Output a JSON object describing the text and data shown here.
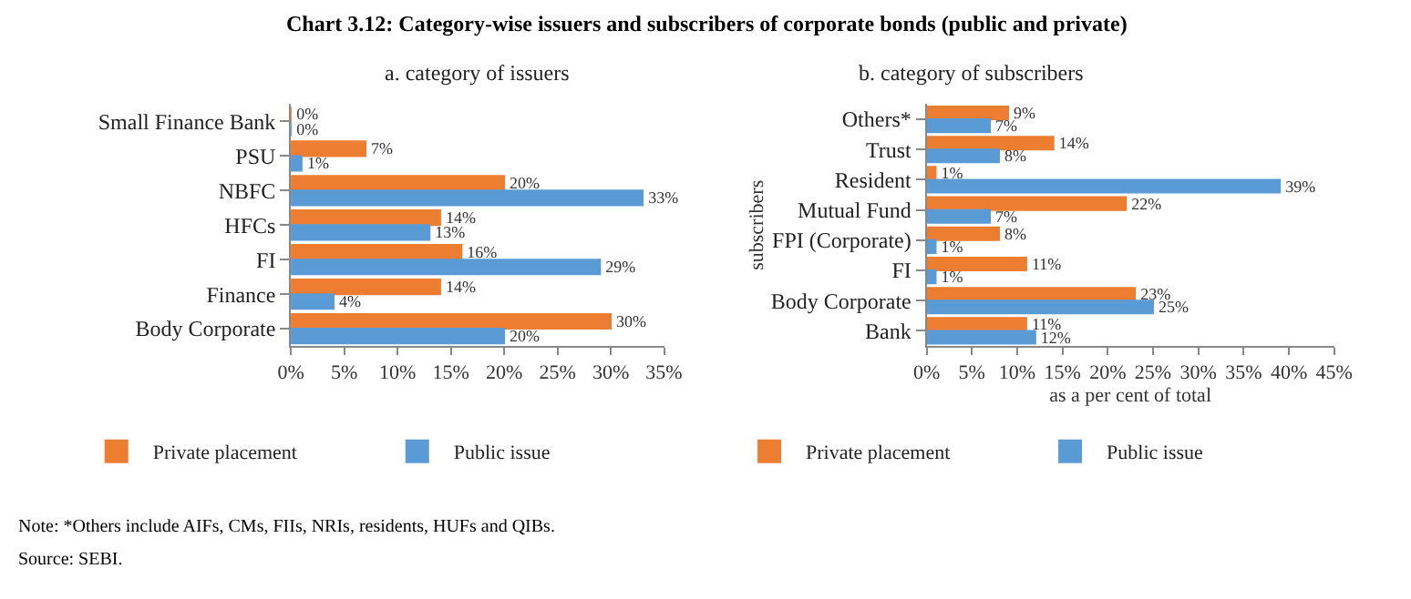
{
  "chart_data": [
    {
      "type": "bar",
      "orientation": "horizontal",
      "title": "Chart 3.12: Category-wise issuers and subscribers of corporate bonds (public and private)",
      "subtitle": "a. category of issuers",
      "categories": [
        "Small Finance Bank",
        "PSU",
        "NBFC",
        "HFCs",
        "FI",
        "Finance",
        "Body Corporate"
      ],
      "series": [
        {
          "name": "Private placement",
          "color": "#ed7d31",
          "values": [
            0,
            7,
            20,
            14,
            16,
            14,
            30
          ],
          "value_labels": [
            "0%",
            "7%",
            "20%",
            "14%",
            "16%",
            "14%",
            "30%"
          ]
        },
        {
          "name": "Public issue",
          "color": "#5b9bd5",
          "values": [
            0,
            1,
            33,
            13,
            29,
            4,
            20
          ],
          "value_labels": [
            "0%",
            "1%",
            "33%",
            "13%",
            "29%",
            "4%",
            "20%"
          ]
        }
      ],
      "xlim": [
        0,
        35
      ],
      "xticks": [
        {
          "value": 0,
          "label": "0%"
        },
        {
          "value": 5,
          "label": "5%"
        },
        {
          "value": 10,
          "label": "10%"
        },
        {
          "value": 15,
          "label": "15%"
        },
        {
          "value": 20,
          "label": "20%"
        },
        {
          "value": 25,
          "label": "25%"
        },
        {
          "value": 30,
          "label": "30%"
        },
        {
          "value": 35,
          "label": "35%"
        }
      ],
      "grid": false,
      "legend": "bottom"
    },
    {
      "type": "bar",
      "orientation": "horizontal",
      "subtitle": "b. category of subscribers",
      "xlabel": "as a per cent of total",
      "ylabel": "subscribers",
      "categories": [
        "Others*",
        "Trust",
        "Resident",
        "Mutual Fund",
        "FPI (Corporate)",
        "FI",
        "Body Corporate",
        "Bank"
      ],
      "series": [
        {
          "name": "Private placement",
          "color": "#ed7d31",
          "values": [
            9,
            14,
            1,
            22,
            8,
            11,
            23,
            11
          ],
          "value_labels": [
            "9%",
            "14%",
            "1%",
            "22%",
            "8%",
            "11%",
            "23%",
            "11%"
          ]
        },
        {
          "name": "Public issue",
          "color": "#5b9bd5",
          "values": [
            7,
            8,
            39,
            7,
            1,
            1,
            25,
            12
          ],
          "value_labels": [
            "7%",
            "8%",
            "39%",
            "7%",
            "1%",
            "1%",
            "25%",
            "12%"
          ]
        }
      ],
      "xlim": [
        0,
        45
      ],
      "xticks": [
        {
          "value": 0,
          "label": "0%"
        },
        {
          "value": 5,
          "label": "5%"
        },
        {
          "value": 10,
          "label": "10%"
        },
        {
          "value": 15,
          "label": "15%"
        },
        {
          "value": 20,
          "label": "20%"
        },
        {
          "value": 25,
          "label": "25%"
        },
        {
          "value": 30,
          "label": "30%"
        },
        {
          "value": 35,
          "label": "35%"
        },
        {
          "value": 40,
          "label": "40%"
        },
        {
          "value": 45,
          "label": "45%"
        }
      ],
      "grid": false,
      "legend": "bottom",
      "annotations": [
        "Note: *Others include AIFs, CMs, FIIs, NRIs, residents, HUFs and QIBs.",
        "Source: SEBI."
      ]
    }
  ]
}
